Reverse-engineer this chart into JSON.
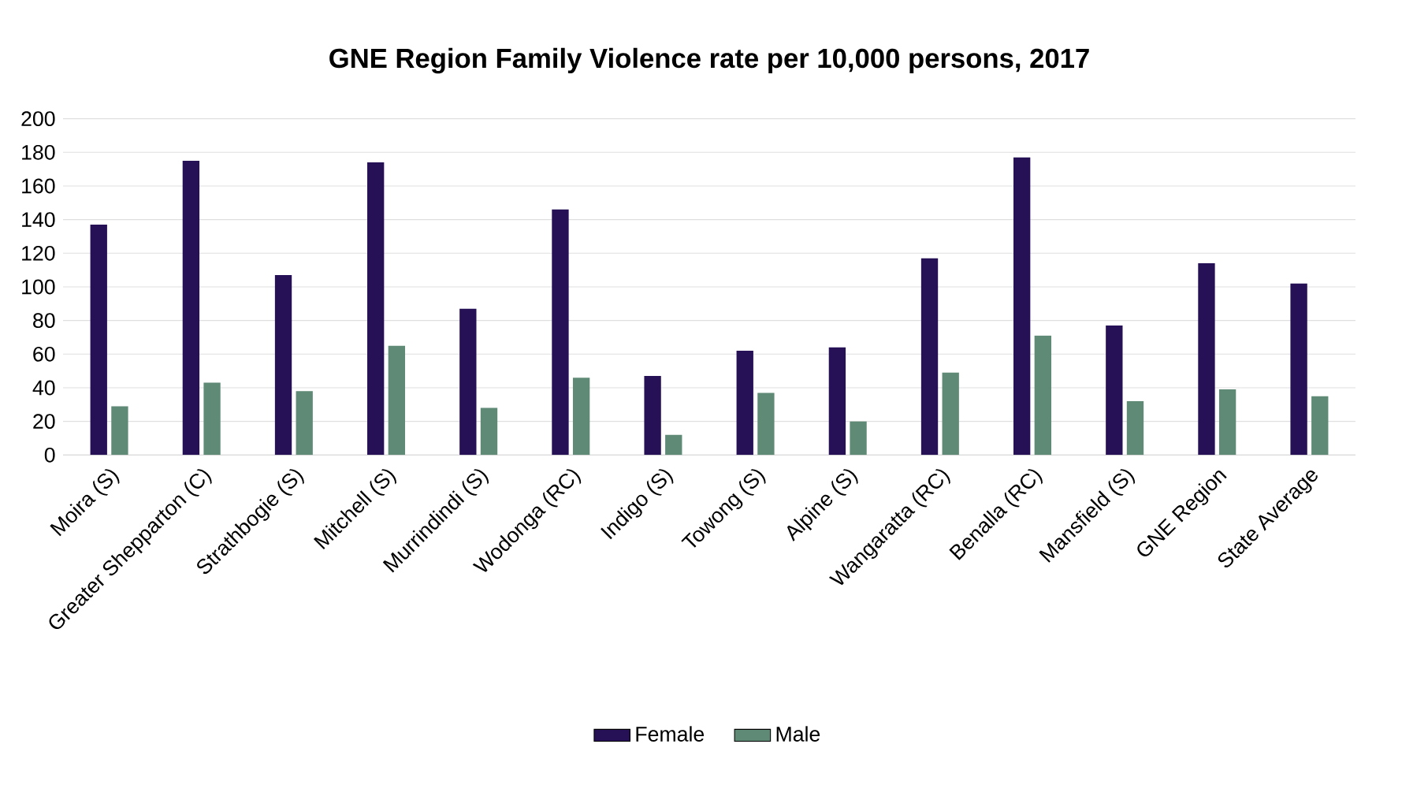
{
  "chart_data": {
    "type": "bar",
    "title": "GNE Region Family Violence rate per 10,000 persons, 2017",
    "categories": [
      "Moira (S)",
      "Greater Shepparton (C)",
      "Strathbogie (S)",
      "Mitchell (S)",
      "Murrindindi (S)",
      "Wodonga (RC)",
      "Indigo (S)",
      "Towong (S)",
      "Alpine (S)",
      "Wangaratta (RC)",
      "Benalla (RC)",
      "Mansfield (S)",
      "GNE Region",
      "State Average"
    ],
    "series": [
      {
        "name": "Female",
        "color": "#261056",
        "values": [
          137,
          175,
          107,
          174,
          87,
          146,
          47,
          62,
          64,
          117,
          177,
          77,
          114,
          102
        ]
      },
      {
        "name": "Male",
        "color": "#5f8a76",
        "values": [
          29,
          43,
          38,
          65,
          28,
          46,
          12,
          37,
          20,
          49,
          71,
          32,
          39,
          35
        ]
      }
    ],
    "ylim": [
      0,
      200
    ],
    "yticks": [
      0,
      20,
      40,
      60,
      80,
      100,
      120,
      140,
      160,
      180,
      200
    ],
    "grid": "y",
    "legend": "bottom"
  }
}
